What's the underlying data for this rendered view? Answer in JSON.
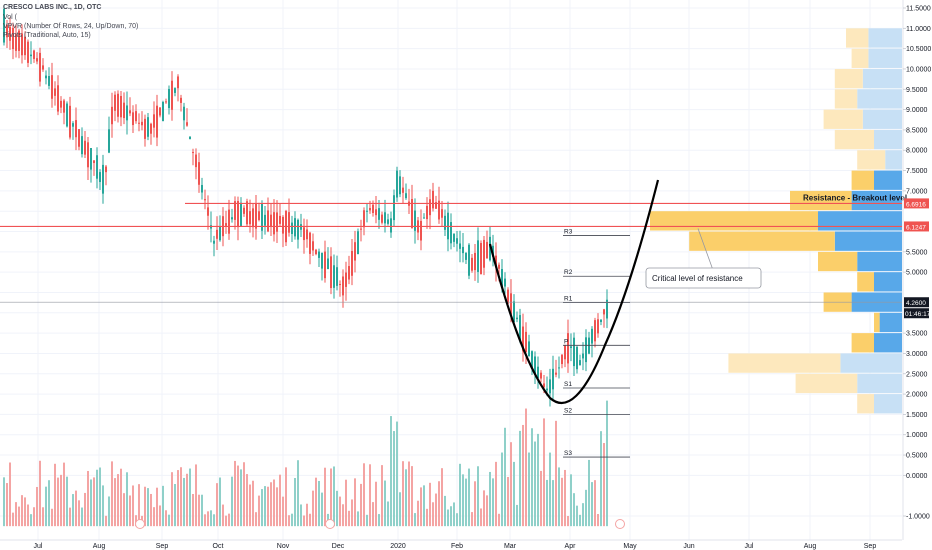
{
  "header": {
    "title": "CRESCO LABS INC., 1D, OTC",
    "vol": "Vol (",
    "vpvr": "VPVR (Number Of Rows, 24, Up/Down, 70)",
    "pivots": "Pivots (Traditional, Auto, 15)"
  },
  "colors": {
    "up": "#26a69a",
    "down": "#ef5350",
    "vol_up": "#8fd0c9",
    "vol_down": "#f4a4a3",
    "vp_up": "#58a8e9",
    "vp_down": "#fbcf6a",
    "vp_up_light": "#c7e0f5",
    "vp_down_light": "#fde8bd",
    "resistance": "#f05355",
    "curve": "#000000"
  },
  "chart_data": {
    "type": "candlestick",
    "symbol": "CRESCO LABS INC.",
    "timeframe": "1D",
    "exchange": "OTC",
    "x_axis_labels": [
      "Jul",
      "Aug",
      "Sep",
      "Oct",
      "Nov",
      "Dec",
      "2020",
      "Feb",
      "Mar",
      "Apr",
      "May",
      "Jun",
      "Jul",
      "Aug",
      "Sep"
    ],
    "y_axis_ticks": [
      "11.5000",
      "11.0000",
      "10.5000",
      "10.0000",
      "9.5000",
      "9.0000",
      "8.5000",
      "8.0000",
      "7.5000",
      "7.0000",
      "6.5000",
      "6.0000",
      "5.5000",
      "5.0000",
      "4.5000",
      "4.0000",
      "3.5000",
      "3.0000",
      "2.5000",
      "2.0000",
      "1.5000",
      "1.0000",
      "0.5000",
      "0.0000",
      "-1.0000"
    ],
    "ylim": [
      -1.2,
      11.6
    ],
    "price_line": {
      "value": 4.26,
      "label": "4.2600",
      "countdown": "01:46:17"
    },
    "resistance_lines": [
      {
        "value": 6.6916,
        "label": "6.6916"
      },
      {
        "value": 6.1247,
        "label": "6.1247"
      }
    ],
    "pivots": [
      {
        "name": "R3",
        "value": 5.9
      },
      {
        "name": "R2",
        "value": 4.9
      },
      {
        "name": "R1",
        "value": 4.25
      },
      {
        "name": "P",
        "value": 3.2
      },
      {
        "name": "S1",
        "value": 2.15
      },
      {
        "name": "S2",
        "value": 1.5
      },
      {
        "name": "S3",
        "value": 0.45
      }
    ],
    "annotations": {
      "breakout": "Resistance - Breakout level",
      "critical": "Critical level of resistance"
    },
    "price_path": [
      {
        "month": "Jun",
        "price": 11.0
      },
      {
        "month": "Jul",
        "price": 10.2
      },
      {
        "month": "Aug",
        "price": 7.2
      },
      {
        "month": "Aug",
        "price": 9.2
      },
      {
        "month": "Sep",
        "price": 8.5
      },
      {
        "month": "Sep",
        "price": 9.6
      },
      {
        "month": "Oct",
        "price": 5.8
      },
      {
        "month": "Oct",
        "price": 6.5
      },
      {
        "month": "Nov",
        "price": 6.1
      },
      {
        "month": "Dec",
        "price": 4.6
      },
      {
        "month": "Dec",
        "price": 6.6
      },
      {
        "month": "2020",
        "price": 6.2
      },
      {
        "month": "2020",
        "price": 7.3
      },
      {
        "month": "2020",
        "price": 6.0
      },
      {
        "month": "Feb",
        "price": 6.8
      },
      {
        "month": "Feb",
        "price": 5.2
      },
      {
        "month": "Mar",
        "price": 5.6
      },
      {
        "month": "Mar",
        "price": 3.6
      },
      {
        "month": "Mar",
        "price": 2.0
      },
      {
        "month": "Apr",
        "price": 3.2
      },
      {
        "month": "Apr",
        "price": 2.8
      },
      {
        "month": "Apr",
        "price": 4.3
      }
    ],
    "volume_profile": [
      {
        "price_low": 10.5,
        "up": 0.12,
        "down": 0.08,
        "light": true
      },
      {
        "price_low": 10.0,
        "up": 0.12,
        "down": 0.06,
        "light": true
      },
      {
        "price_low": 9.5,
        "up": 0.14,
        "down": 0.1,
        "light": true
      },
      {
        "price_low": 9.0,
        "up": 0.16,
        "down": 0.08,
        "light": true
      },
      {
        "price_low": 8.5,
        "up": 0.14,
        "down": 0.14,
        "light": true
      },
      {
        "price_low": 8.0,
        "up": 0.1,
        "down": 0.14,
        "light": true
      },
      {
        "price_low": 7.5,
        "up": 0.06,
        "down": 0.1,
        "light": true
      },
      {
        "price_low": 7.0,
        "up": 0.1,
        "down": 0.08,
        "light": false
      },
      {
        "price_low": 6.5,
        "up": 0.18,
        "down": 0.22,
        "light": false
      },
      {
        "price_low": 6.0,
        "up": 0.3,
        "down": 0.6,
        "light": false
      },
      {
        "price_low": 5.5,
        "up": 0.24,
        "down": 0.52,
        "light": false
      },
      {
        "price_low": 5.0,
        "up": 0.16,
        "down": 0.14,
        "light": false
      },
      {
        "price_low": 4.5,
        "up": 0.1,
        "down": 0.06,
        "light": false
      },
      {
        "price_low": 4.0,
        "up": 0.18,
        "down": 0.1,
        "light": false
      },
      {
        "price_low": 3.5,
        "up": 0.08,
        "down": 0.02,
        "light": false
      },
      {
        "price_low": 3.0,
        "up": 0.1,
        "down": 0.08,
        "light": false
      },
      {
        "price_low": 2.5,
        "up": 0.22,
        "down": 0.4,
        "light": true
      },
      {
        "price_low": 2.0,
        "up": 0.16,
        "down": 0.22,
        "light": true
      },
      {
        "price_low": 1.5,
        "up": 0.1,
        "down": 0.06,
        "light": true
      }
    ]
  }
}
